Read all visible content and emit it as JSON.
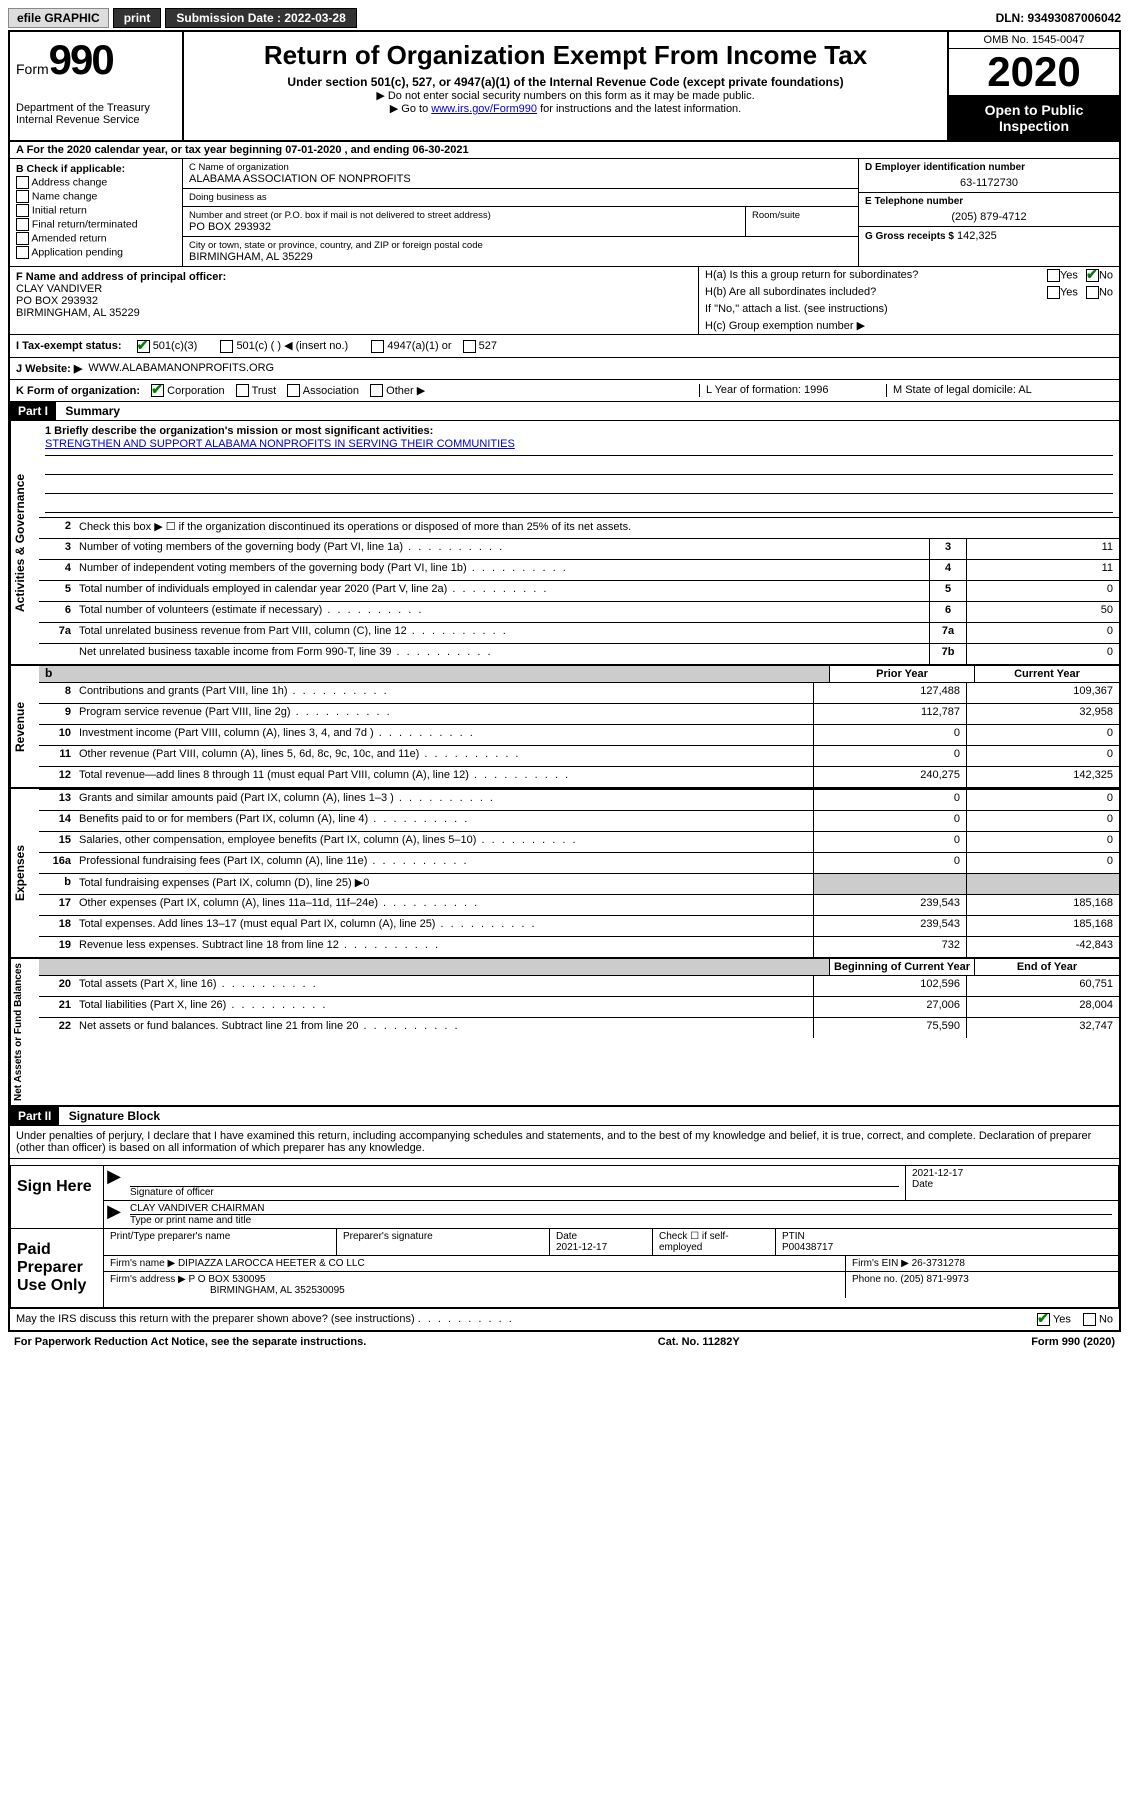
{
  "topbar": {
    "efile": "efile GRAPHIC",
    "print": "print",
    "submission_label": "Submission Date : 2022-03-28",
    "dln": "DLN: 93493087006042"
  },
  "header": {
    "form_prefix": "Form",
    "form_num": "990",
    "dept": "Department of the Treasury\nInternal Revenue Service",
    "title": "Return of Organization Exempt From Income Tax",
    "subtitle": "Under section 501(c), 527, or 4947(a)(1) of the Internal Revenue Code (except private foundations)",
    "note1": "▶ Do not enter social security numbers on this form as it may be made public.",
    "note2_pre": "▶ Go to ",
    "note2_link": "www.irs.gov/Form990",
    "note2_post": " for instructions and the latest information.",
    "omb": "OMB No. 1545-0047",
    "year": "2020",
    "open": "Open to Public Inspection"
  },
  "row_a": "A For the 2020 calendar year, or tax year beginning 07-01-2020   , and ending 06-30-2021",
  "section_b": {
    "label": "B Check if applicable:",
    "opts": [
      "Address change",
      "Name change",
      "Initial return",
      "Final return/terminated",
      "Amended return",
      "Application pending"
    ]
  },
  "section_c": {
    "name_label": "C Name of organization",
    "name": "ALABAMA ASSOCIATION OF NONPROFITS",
    "dba_label": "Doing business as",
    "dba": "",
    "addr_label": "Number and street (or P.O. box if mail is not delivered to street address)",
    "addr": "PO BOX 293932",
    "room_label": "Room/suite",
    "city_label": "City or town, state or province, country, and ZIP or foreign postal code",
    "city": "BIRMINGHAM, AL  35229"
  },
  "section_d": {
    "ein_label": "D Employer identification number",
    "ein": "63-1172730",
    "phone_label": "E Telephone number",
    "phone": "(205) 879-4712",
    "gross_label": "G Gross receipts $",
    "gross": "142,325"
  },
  "section_f": {
    "label": "F  Name and address of principal officer:",
    "name": "CLAY VANDIVER",
    "addr1": "PO BOX 293932",
    "addr2": "BIRMINGHAM, AL  35229"
  },
  "section_h": {
    "ha": "H(a)  Is this a group return for subordinates?",
    "hb": "H(b)  Are all subordinates included?",
    "hb_note": "If \"No,\" attach a list. (see instructions)",
    "hc": "H(c)  Group exemption number ▶",
    "yes": "Yes",
    "no": "No"
  },
  "row_i": {
    "label": "I  Tax-exempt status:",
    "opts": [
      "501(c)(3)",
      "501(c) (   ) ◀ (insert no.)",
      "4947(a)(1) or",
      "527"
    ]
  },
  "row_j": {
    "label": "J  Website: ▶",
    "val": "WWW.ALABAMANONPROFITS.ORG"
  },
  "row_k": {
    "label": "K Form of organization:",
    "opts": [
      "Corporation",
      "Trust",
      "Association",
      "Other ▶"
    ],
    "l": "L Year of formation: 1996",
    "m": "M State of legal domicile: AL"
  },
  "part1": {
    "header": "Part I",
    "title": "Summary",
    "line1_label": "1  Briefly describe the organization's mission or most significant activities:",
    "mission": "STRENGTHEN AND SUPPORT ALABAMA NONPROFITS IN SERVING THEIR COMMUNITIES",
    "line2": "Check this box ▶ ☐  if the organization discontinued its operations or disposed of more than 25% of its net assets.",
    "governance_label": "Activities & Governance",
    "revenue_label": "Revenue",
    "expenses_label": "Expenses",
    "netassets_label": "Net Assets or Fund Balances",
    "prior_year": "Prior Year",
    "current_year": "Current Year",
    "begin_year": "Beginning of Current Year",
    "end_year": "End of Year",
    "lines_gov": [
      {
        "n": "3",
        "d": "Number of voting members of the governing body (Part VI, line 1a)",
        "b": "3",
        "v": "11"
      },
      {
        "n": "4",
        "d": "Number of independent voting members of the governing body (Part VI, line 1b)",
        "b": "4",
        "v": "11"
      },
      {
        "n": "5",
        "d": "Total number of individuals employed in calendar year 2020 (Part V, line 2a)",
        "b": "5",
        "v": "0"
      },
      {
        "n": "6",
        "d": "Total number of volunteers (estimate if necessary)",
        "b": "6",
        "v": "50"
      },
      {
        "n": "7a",
        "d": "Total unrelated business revenue from Part VIII, column (C), line 12",
        "b": "7a",
        "v": "0"
      },
      {
        "n": "",
        "d": "Net unrelated business taxable income from Form 990-T, line 39",
        "b": "7b",
        "v": "0"
      }
    ],
    "lines_rev": [
      {
        "n": "8",
        "d": "Contributions and grants (Part VIII, line 1h)",
        "p": "127,488",
        "c": "109,367"
      },
      {
        "n": "9",
        "d": "Program service revenue (Part VIII, line 2g)",
        "p": "112,787",
        "c": "32,958"
      },
      {
        "n": "10",
        "d": "Investment income (Part VIII, column (A), lines 3, 4, and 7d )",
        "p": "0",
        "c": "0"
      },
      {
        "n": "11",
        "d": "Other revenue (Part VIII, column (A), lines 5, 6d, 8c, 9c, 10c, and 11e)",
        "p": "0",
        "c": "0"
      },
      {
        "n": "12",
        "d": "Total revenue—add lines 8 through 11 (must equal Part VIII, column (A), line 12)",
        "p": "240,275",
        "c": "142,325"
      }
    ],
    "lines_exp": [
      {
        "n": "13",
        "d": "Grants and similar amounts paid (Part IX, column (A), lines 1–3 )",
        "p": "0",
        "c": "0"
      },
      {
        "n": "14",
        "d": "Benefits paid to or for members (Part IX, column (A), line 4)",
        "p": "0",
        "c": "0"
      },
      {
        "n": "15",
        "d": "Salaries, other compensation, employee benefits (Part IX, column (A), lines 5–10)",
        "p": "0",
        "c": "0"
      },
      {
        "n": "16a",
        "d": "Professional fundraising fees (Part IX, column (A), line 11e)",
        "p": "0",
        "c": "0"
      },
      {
        "n": "b",
        "d": "Total fundraising expenses (Part IX, column (D), line 25) ▶0",
        "p": "",
        "c": "",
        "shade": true
      },
      {
        "n": "17",
        "d": "Other expenses (Part IX, column (A), lines 11a–11d, 11f–24e)",
        "p": "239,543",
        "c": "185,168"
      },
      {
        "n": "18",
        "d": "Total expenses. Add lines 13–17 (must equal Part IX, column (A), line 25)",
        "p": "239,543",
        "c": "185,168"
      },
      {
        "n": "19",
        "d": "Revenue less expenses. Subtract line 18 from line 12",
        "p": "732",
        "c": "-42,843"
      }
    ],
    "lines_net": [
      {
        "n": "20",
        "d": "Total assets (Part X, line 16)",
        "p": "102,596",
        "c": "60,751"
      },
      {
        "n": "21",
        "d": "Total liabilities (Part X, line 26)",
        "p": "27,006",
        "c": "28,004"
      },
      {
        "n": "22",
        "d": "Net assets or fund balances. Subtract line 21 from line 20",
        "p": "75,590",
        "c": "32,747"
      }
    ]
  },
  "part2": {
    "header": "Part II",
    "title": "Signature Block",
    "declaration": "Under penalties of perjury, I declare that I have examined this return, including accompanying schedules and statements, and to the best of my knowledge and belief, it is true, correct, and complete. Declaration of preparer (other than officer) is based on all information of which preparer has any knowledge."
  },
  "sign": {
    "label": "Sign Here",
    "sig_label": "Signature of officer",
    "date": "2021-12-17",
    "date_label": "Date",
    "name": "CLAY VANDIVER  CHAIRMAN",
    "name_label": "Type or print name and title"
  },
  "preparer": {
    "label": "Paid Preparer Use Only",
    "name_label": "Print/Type preparer's name",
    "sig_label": "Preparer's signature",
    "date_label": "Date",
    "date": "2021-12-17",
    "check_label": "Check ☐ if self-employed",
    "ptin_label": "PTIN",
    "ptin": "P00438717",
    "firm_name_label": "Firm's name    ▶",
    "firm_name": "DIPIAZZA LAROCCA HEETER & CO LLC",
    "firm_ein_label": "Firm's EIN ▶",
    "firm_ein": "26-3731278",
    "firm_addr_label": "Firm's address ▶",
    "firm_addr1": "P O BOX 530095",
    "firm_addr2": "BIRMINGHAM, AL  352530095",
    "phone_label": "Phone no.",
    "phone": "(205) 871-9973"
  },
  "irs_discuss": "May the IRS discuss this return with the preparer shown above? (see instructions)",
  "footer": {
    "left": "For Paperwork Reduction Act Notice, see the separate instructions.",
    "mid": "Cat. No. 11282Y",
    "right": "Form 990 (2020)"
  }
}
